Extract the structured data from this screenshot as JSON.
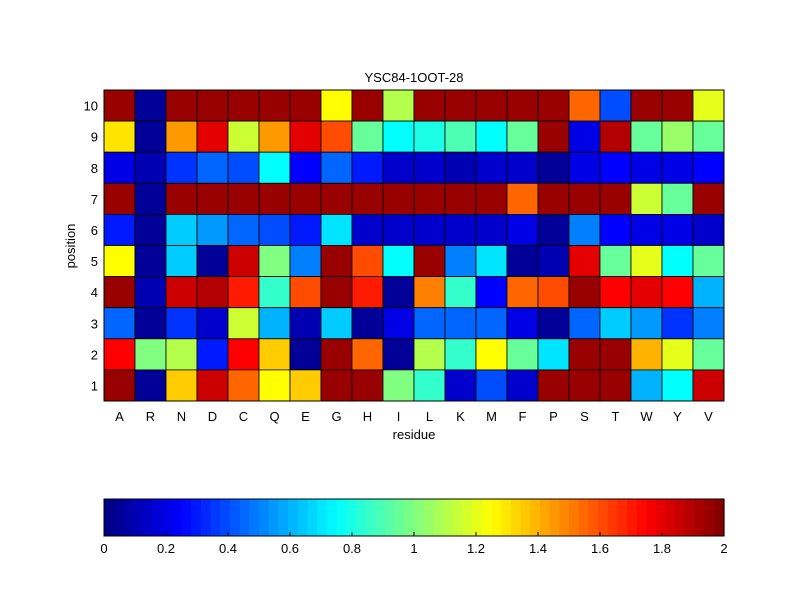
{
  "chart_data": {
    "type": "heatmap",
    "title": "YSC84-1OOT-28",
    "xlabel": "residue",
    "ylabel": "position",
    "x_categories": [
      "A",
      "R",
      "N",
      "D",
      "C",
      "Q",
      "E",
      "G",
      "H",
      "I",
      "L",
      "K",
      "M",
      "F",
      "P",
      "S",
      "T",
      "W",
      "Y",
      "V"
    ],
    "y_categories": [
      "1",
      "2",
      "3",
      "4",
      "5",
      "6",
      "7",
      "8",
      "9",
      "10"
    ],
    "value_range": [
      0,
      2
    ],
    "colormap": "jet",
    "colorbar": {
      "orientation": "horizontal",
      "ticks": [
        0,
        0.2,
        0.4,
        0.6,
        0.8,
        1,
        1.2,
        1.4,
        1.6,
        1.8,
        2
      ],
      "tick_labels": [
        "0",
        "0.2",
        "0.4",
        "0.6",
        "0.8",
        "1",
        "1.2",
        "1.4",
        "1.6",
        "1.8",
        "2"
      ]
    },
    "rows_top_to_bottom": [
      "10",
      "9",
      "8",
      "7",
      "6",
      "5",
      "4",
      "3",
      "2",
      "1"
    ],
    "values": [
      [
        1.95,
        0.05,
        1.95,
        1.95,
        1.95,
        1.95,
        1.95,
        1.25,
        1.95,
        1.1,
        1.95,
        1.95,
        1.95,
        1.95,
        1.95,
        1.55,
        0.4,
        1.95,
        1.95,
        1.2
      ],
      [
        1.3,
        0.05,
        1.45,
        1.8,
        1.15,
        1.45,
        1.8,
        1.6,
        0.95,
        0.75,
        0.8,
        0.9,
        0.75,
        0.95,
        1.95,
        0.2,
        1.9,
        0.95,
        1.05,
        0.95
      ],
      [
        0.2,
        0.1,
        0.35,
        0.45,
        0.4,
        0.75,
        0.25,
        0.45,
        0.3,
        0.15,
        0.15,
        0.1,
        0.15,
        0.15,
        0.05,
        0.2,
        0.25,
        0.2,
        0.2,
        0.25
      ],
      [
        1.95,
        0.05,
        1.95,
        1.95,
        1.95,
        1.95,
        1.95,
        1.95,
        1.95,
        1.95,
        1.95,
        1.95,
        1.95,
        1.55,
        1.95,
        1.95,
        1.95,
        1.15,
        0.95,
        1.95
      ],
      [
        0.3,
        0.05,
        0.65,
        0.55,
        0.45,
        0.4,
        0.3,
        0.7,
        0.15,
        0.15,
        0.15,
        0.15,
        0.15,
        0.2,
        0.05,
        0.5,
        0.25,
        0.2,
        0.2,
        0.15
      ],
      [
        1.25,
        0.05,
        0.65,
        0.05,
        1.85,
        1.0,
        0.5,
        1.95,
        1.6,
        0.75,
        1.95,
        0.5,
        0.7,
        0.05,
        0.1,
        1.8,
        0.95,
        1.2,
        0.75,
        0.95
      ],
      [
        1.95,
        0.1,
        1.85,
        1.9,
        1.7,
        0.85,
        1.6,
        1.95,
        1.7,
        0.05,
        1.5,
        0.85,
        0.25,
        1.55,
        1.6,
        1.95,
        1.75,
        1.8,
        1.75,
        0.6
      ],
      [
        0.45,
        0.05,
        0.35,
        0.15,
        1.15,
        0.6,
        0.1,
        0.65,
        0.05,
        0.2,
        0.45,
        0.45,
        0.45,
        0.2,
        0.05,
        0.45,
        0.65,
        0.55,
        0.35,
        0.5
      ],
      [
        1.75,
        1.0,
        1.1,
        0.3,
        1.75,
        1.35,
        0.05,
        1.95,
        1.55,
        0.05,
        1.1,
        0.85,
        1.25,
        0.95,
        0.7,
        1.95,
        1.95,
        1.4,
        1.2,
        0.95
      ],
      [
        1.95,
        0.05,
        1.35,
        1.85,
        1.55,
        1.25,
        1.35,
        1.95,
        1.95,
        1.0,
        0.85,
        0.15,
        0.4,
        0.15,
        1.95,
        1.95,
        1.95,
        0.6,
        0.75,
        1.85
      ]
    ]
  }
}
